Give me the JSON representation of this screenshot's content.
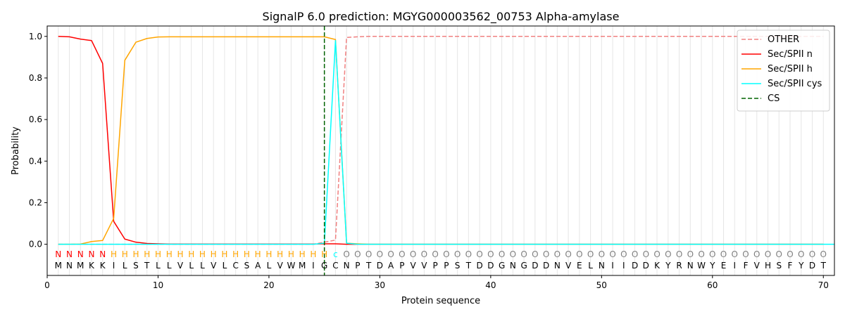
{
  "chart_data": {
    "type": "line",
    "title": "SignalP 6.0 prediction: MGYG000003562_00753 Alpha-amylase",
    "xlabel": "Protein sequence",
    "ylabel": "Probability",
    "xlim": [
      0,
      71
    ],
    "ylim": [
      -0.15,
      1.05
    ],
    "x_ticks": [
      0,
      10,
      20,
      30,
      40,
      50,
      60,
      70
    ],
    "y_ticks": [
      0.0,
      0.2,
      0.4,
      0.6,
      0.8,
      1.0
    ],
    "x_tick_labels": [
      "0",
      "10",
      "20",
      "30",
      "40",
      "50",
      "60",
      "70"
    ],
    "y_tick_labels": [
      "0.0",
      "0.2",
      "0.4",
      "0.6",
      "0.8",
      "1.0"
    ],
    "grid": "vertical lines at each residue",
    "legend_position": "top-right",
    "sequence": [
      "M",
      "N",
      "M",
      "K",
      "K",
      "I",
      "L",
      "S",
      "T",
      "L",
      "L",
      "V",
      "L",
      "L",
      "V",
      "L",
      "C",
      "S",
      "A",
      "L",
      "V",
      "W",
      "M",
      "I",
      "G",
      "C",
      "N",
      "P",
      "T",
      "D",
      "A",
      "P",
      "V",
      "V",
      "P",
      "P",
      "S",
      "T",
      "D",
      "D",
      "G",
      "N",
      "G",
      "D",
      "D",
      "N",
      "V",
      "E",
      "L",
      "N",
      "I",
      "I",
      "D",
      "D",
      "K",
      "Y",
      "R",
      "N",
      "W",
      "Y",
      "E",
      "I",
      "F",
      "V",
      "H",
      "S",
      "F",
      "Y",
      "D",
      "T"
    ],
    "region_labels": [
      "N",
      "N",
      "N",
      "N",
      "N",
      "H",
      "H",
      "H",
      "H",
      "H",
      "H",
      "H",
      "H",
      "H",
      "H",
      "H",
      "H",
      "H",
      "H",
      "H",
      "H",
      "H",
      "H",
      "H",
      "H",
      "c",
      "O",
      "O",
      "O",
      "O",
      "O",
      "O",
      "O",
      "O",
      "O",
      "O",
      "O",
      "O",
      "O",
      "O",
      "O",
      "O",
      "O",
      "O",
      "O",
      "O",
      "O",
      "O",
      "O",
      "O",
      "O",
      "O",
      "O",
      "O",
      "O",
      "O",
      "O",
      "O",
      "O",
      "O",
      "O",
      "O",
      "O",
      "O",
      "O",
      "O",
      "O",
      "O",
      "O",
      "O"
    ],
    "region_colors": {
      "N": "#ff0000",
      "H": "#ffa500",
      "c": "#00ffff",
      "O": "#808080"
    },
    "series": [
      {
        "name": "OTHER",
        "color": "#f08080",
        "style": "dashed",
        "values": [
          0,
          0,
          0,
          0,
          0,
          0,
          0,
          0,
          0,
          0,
          0,
          0,
          0,
          0,
          0,
          0,
          0,
          0,
          0,
          0,
          0,
          0,
          0,
          0,
          0.01,
          0.02,
          0.995,
          0.998,
          1,
          1,
          1,
          1,
          1,
          1,
          1,
          1,
          1,
          1,
          1,
          1,
          1,
          1,
          1,
          1,
          1,
          1,
          1,
          1,
          1,
          1,
          1,
          1,
          1,
          1,
          1,
          1,
          1,
          1,
          1,
          1,
          1,
          1,
          1,
          1,
          1,
          1,
          1,
          1,
          1,
          1
        ]
      },
      {
        "name": "Sec/SPII n",
        "color": "#ff0000",
        "style": "solid",
        "values": [
          1.0,
          0.998,
          0.987,
          0.98,
          0.87,
          0.11,
          0.025,
          0.01,
          0.004,
          0.002,
          0.001,
          0.001,
          0.001,
          0.001,
          0.001,
          0.001,
          0.001,
          0.001,
          0.001,
          0.001,
          0.001,
          0.001,
          0.001,
          0.001,
          0.002,
          0.002,
          0,
          0,
          0,
          0,
          0,
          0,
          0,
          0,
          0,
          0,
          0,
          0,
          0,
          0,
          0,
          0,
          0,
          0,
          0,
          0,
          0,
          0,
          0,
          0,
          0,
          0,
          0,
          0,
          0,
          0,
          0,
          0,
          0,
          0,
          0,
          0,
          0,
          0,
          0,
          0,
          0,
          0,
          0,
          0
        ]
      },
      {
        "name": "Sec/SPII h",
        "color": "#ffa500",
        "style": "solid",
        "values": [
          0,
          0,
          0.001,
          0.013,
          0.018,
          0.125,
          0.885,
          0.972,
          0.99,
          0.997,
          0.998,
          0.998,
          0.998,
          0.998,
          0.998,
          0.998,
          0.998,
          0.998,
          0.998,
          0.998,
          0.998,
          0.998,
          0.998,
          0.998,
          0.998,
          0.985,
          0.005,
          0.002,
          0,
          0,
          0,
          0,
          0,
          0,
          0,
          0,
          0,
          0,
          0,
          0,
          0,
          0,
          0,
          0,
          0,
          0,
          0,
          0,
          0,
          0,
          0,
          0,
          0,
          0,
          0,
          0,
          0,
          0,
          0,
          0,
          0,
          0,
          0,
          0,
          0,
          0,
          0,
          0,
          0,
          0
        ]
      },
      {
        "name": "Sec/SPII cys",
        "color": "#00ffff",
        "style": "solid",
        "values": [
          0,
          0,
          0,
          0,
          0,
          0,
          0,
          0,
          0,
          0,
          0,
          0,
          0,
          0,
          0,
          0,
          0,
          0,
          0,
          0,
          0,
          0,
          0,
          0,
          0.005,
          0.98,
          0.005,
          0,
          0,
          0,
          0,
          0,
          0,
          0,
          0,
          0,
          0,
          0,
          0,
          0,
          0,
          0,
          0,
          0,
          0,
          0,
          0,
          0,
          0,
          0,
          0,
          0,
          0,
          0,
          0,
          0,
          0,
          0,
          0,
          0,
          0,
          0,
          0,
          0,
          0,
          0,
          0,
          0,
          0,
          0,
          0
        ]
      }
    ],
    "cleavage_site": {
      "name": "CS",
      "x": 25,
      "color": "#006400",
      "style": "dashed"
    }
  }
}
